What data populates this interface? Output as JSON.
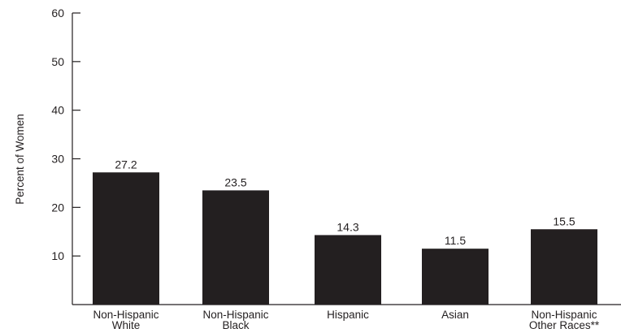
{
  "chart_data": {
    "type": "bar",
    "categories": [
      [
        "Non-Hispanic",
        "White"
      ],
      [
        "Non-Hispanic",
        "Black"
      ],
      [
        "Hispanic"
      ],
      [
        "Asian"
      ],
      [
        "Non-Hispanic",
        "Other Races**"
      ]
    ],
    "values": [
      27.2,
      23.5,
      14.3,
      11.5,
      15.5
    ],
    "data_labels": [
      "27.2",
      "23.5",
      "14.3",
      "11.5",
      "15.5"
    ],
    "ylabel": "Percent of Women",
    "xlabel": "",
    "ylim": [
      0,
      60
    ],
    "yticks": [
      10,
      20,
      30,
      40,
      50,
      60
    ],
    "grid": false,
    "colors": {
      "bar": "#231f20",
      "axis": "#231f20",
      "text": "#231f20"
    }
  }
}
